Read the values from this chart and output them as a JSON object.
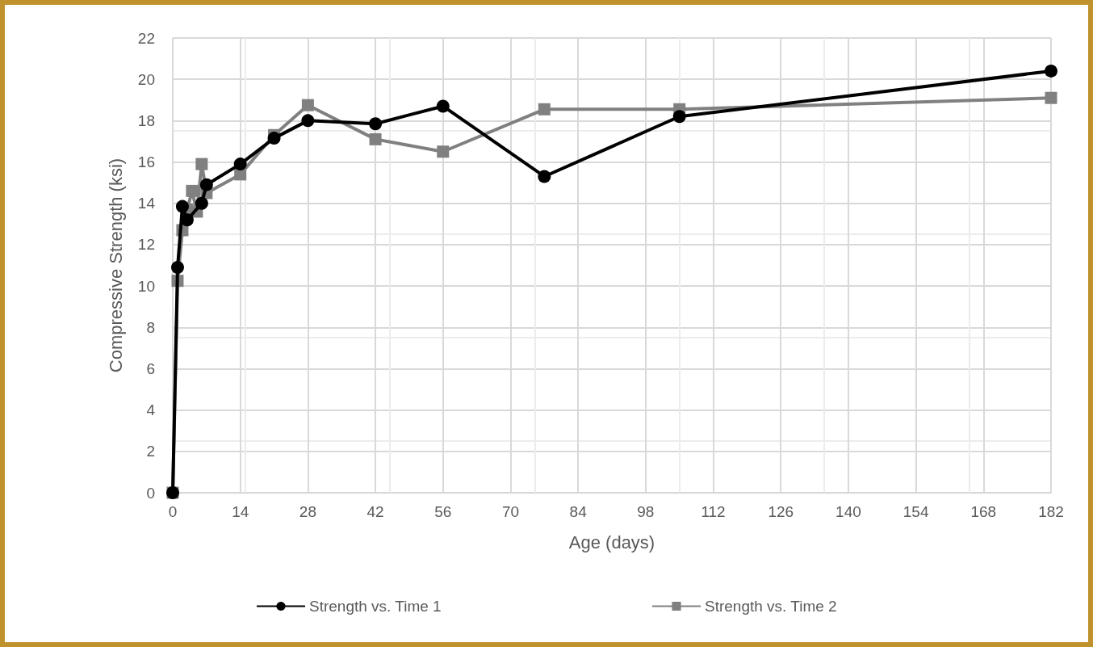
{
  "chart_data": {
    "type": "line",
    "xlabel": "Age (days)",
    "ylabel": "Compressive Strength (ksi)",
    "xlim": [
      0,
      182
    ],
    "xticks": [
      0,
      14,
      28,
      42,
      56,
      70,
      84,
      98,
      112,
      126,
      140,
      154,
      168,
      182
    ],
    "ylim": [
      0,
      22
    ],
    "yticks": [
      0,
      2,
      4,
      6,
      8,
      10,
      12,
      14,
      16,
      18,
      20,
      22
    ],
    "grid": true,
    "legend": "bottom",
    "line_style": "solid",
    "series": [
      {
        "name": "Strength vs. Time 1",
        "color": "#000000",
        "marker": "circle",
        "x": [
          0,
          1,
          2,
          3,
          6,
          7,
          14,
          21,
          28,
          42,
          56,
          77,
          105,
          182
        ],
        "values": [
          0,
          10.9,
          13.85,
          13.2,
          14.0,
          14.9,
          15.9,
          17.15,
          18.0,
          17.85,
          18.7,
          15.3,
          18.2,
          20.4
        ]
      },
      {
        "name": "Strength vs. Time 2",
        "color": "#808080",
        "marker": "square",
        "x": [
          0,
          1,
          2,
          3,
          4,
          5,
          6,
          7,
          14,
          21,
          28,
          42,
          56,
          77,
          105,
          182
        ],
        "values": [
          0,
          10.25,
          12.7,
          13.7,
          14.6,
          13.6,
          15.9,
          14.5,
          15.4,
          17.3,
          18.75,
          17.1,
          16.5,
          18.55,
          18.55,
          19.1
        ]
      }
    ]
  }
}
